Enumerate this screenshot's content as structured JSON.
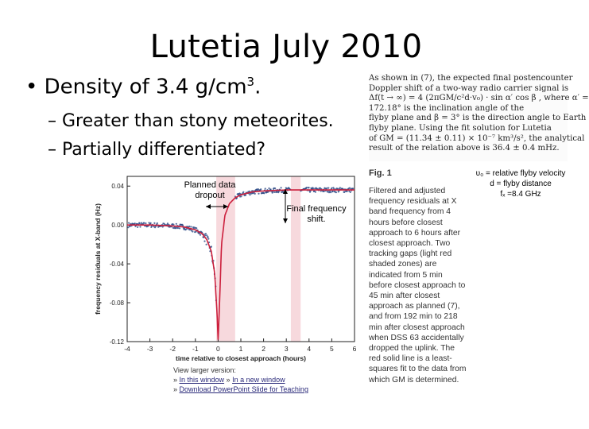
{
  "slide": {
    "title": "Lutetia July 2010",
    "bullet_prefix": "Density of 3.4 g/cm",
    "bullet_sup": "3",
    "bullet_suffix": ".",
    "sub1": "– Greater than stony meteorites.",
    "sub2": "– Partially differentiated?"
  },
  "excerpt": {
    "lines": [
      "As shown in (7), the expected final postencounter",
      "Doppler shift of a two-way radio carrier signal is",
      "Δf(t → ∞) = 4 (2πGM/c²d·v₀) · sin α′ cos β , where α′ =",
      "172.18° is the inclination angle of the",
      "flyby plane and β = 3° is the direction angle to Earth",
      "flyby plane. Using the fit solution for Lutetia",
      "of GM = (11.34 ± 0.11) × 10⁻⁷ km³/s², the analytical",
      "result of the relation above is 36.4 ± 0.4 mHz."
    ]
  },
  "figure": {
    "heading": "Fig. 1",
    "caption": "Filtered and adjusted frequency residuals at X band frequency from 4 hours before closest approach to 6 hours after closest approach. Two tracking gaps (light red shaded zones) are indicated from 5 min before closest approach to 45 min after closest approach as planned (7), and from 192 min to 218 min after closest approach when DSS 63 accidentally dropped the uplink. The red solid line is a least-squares fit to the data from which GM is determined.",
    "view_larger": "View larger version:",
    "in_window": "In this window",
    "new_window": "In a new window",
    "download": "Download PowerPoint Slide for Teaching"
  },
  "annotations": {
    "planned_dropout": "Planned data dropout",
    "final_shift": "Final frequency shift."
  },
  "note": {
    "line1": "υ₀ = relative flyby velocity",
    "line2": "d = flyby distance",
    "line3": "fₓ =8.4 GHz"
  },
  "chart_data": {
    "type": "line",
    "title": "",
    "xlabel": "time relative to closest approach (hours)",
    "ylabel": "frequency residuals at X-band (Hz)",
    "xlim": [
      -4,
      6
    ],
    "ylim": [
      -0.12,
      0.05
    ],
    "x_ticks": [
      -4,
      -3,
      -2,
      -1,
      0,
      1,
      2,
      3,
      4,
      5,
      6
    ],
    "y_ticks": [
      0.04,
      0.0,
      -0.04,
      -0.08,
      -0.12
    ],
    "y_tick_labels": [
      "0.04",
      "0.00",
      "-0.04",
      "-0.08",
      "-0.12"
    ],
    "series": [
      {
        "name": "least-squares fit",
        "color": "#cc1f3c",
        "x": [
          -4,
          -3,
          -2,
          -1.5,
          -1,
          -0.7,
          -0.5,
          -0.3,
          -0.15,
          -0.05,
          0,
          0.05,
          0.15,
          0.3,
          0.5,
          0.75,
          1,
          1.5,
          2,
          3,
          4,
          5,
          6
        ],
        "values": [
          0.0,
          0.0,
          -0.001,
          -0.002,
          -0.005,
          -0.009,
          -0.015,
          -0.027,
          -0.05,
          -0.09,
          -0.118,
          -0.09,
          -0.02,
          0.01,
          0.022,
          0.028,
          0.031,
          0.034,
          0.035,
          0.036,
          0.036,
          0.036,
          0.036
        ]
      }
    ],
    "gaps": [
      {
        "from": -0.08,
        "to": 0.75
      },
      {
        "from": 3.2,
        "to": 3.63
      }
    ]
  },
  "colors": {
    "data_points": "#2c4a86",
    "fit_line": "#cc1f3c",
    "gap_shade": "#f7d9dd"
  }
}
